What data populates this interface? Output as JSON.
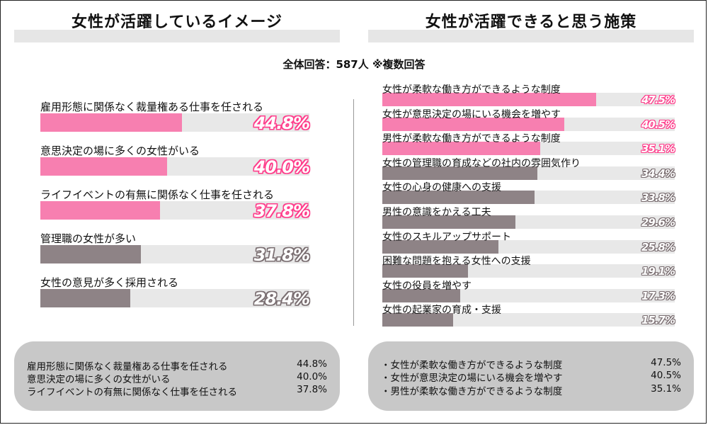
{
  "header": {
    "left_title": "女性が活躍しているイメージ",
    "right_title": "女性が活躍できると思う施策",
    "subtitle": "全体回答：587人 ※複数回答"
  },
  "colors": {
    "pink": "#f77fb0",
    "gray": "#8e8386",
    "track": "#e8e8e8",
    "pink_outline": "#ff3d8b",
    "gray_outline": "#7a6e71",
    "summary_bg": "#c8c8c8"
  },
  "chart_data": [
    {
      "type": "bar",
      "orientation": "horizontal",
      "title": "女性が活躍しているイメージ",
      "categories": [
        "雇用形態に関係なく裁量権ある仕事を任される",
        "意思決定の場に多くの女性がいる",
        "ライフイベントの有無に関係なく仕事を任される",
        "管理職の女性が多い",
        "女性の意見が多く採用される"
      ],
      "values": [
        44.8,
        40.0,
        37.8,
        31.8,
        28.4
      ],
      "value_labels": [
        "44.8%",
        "40.0%",
        "37.8%",
        "31.8%",
        "28.4%"
      ],
      "highlight_count": 3,
      "xlim": [
        0,
        100
      ],
      "grid": false
    },
    {
      "type": "bar",
      "orientation": "horizontal",
      "title": "女性が活躍できると思う施策",
      "categories": [
        "女性が柔軟な働き方ができるような制度",
        "女性が意思決定の場にいる機会を増やす",
        "男性が柔軟な働き方ができるような制度",
        "女性の管理職の育成などの社内の雰囲気作り",
        "女性の心身の健康への支援",
        "男性の意識をかえる工夫",
        "女性のスキルアップサポート",
        "困難な問題を抱える女性への支援",
        "女性の役員を増やす",
        "女性の起業家の育成・支援"
      ],
      "values": [
        47.5,
        40.5,
        35.1,
        34.4,
        33.8,
        29.6,
        25.8,
        19.1,
        17.3,
        15.7
      ],
      "value_labels": [
        "47.5%",
        "40.5%",
        "35.1%",
        "34.4%",
        "33.8%",
        "29.6%",
        "25.8%",
        "19.1%",
        "17.3%",
        "15.7%"
      ],
      "highlight_count": 3,
      "xlim": [
        0,
        100
      ],
      "grid": false
    }
  ],
  "summary_left": [
    {
      "label": "雇用形態に関係なく裁量権ある仕事を任される",
      "pct": "44.8%"
    },
    {
      "label": "意思決定の場に多くの女性がいる",
      "pct": "40.0%"
    },
    {
      "label": "ライフイベントの有無に関係なく仕事を任される",
      "pct": "37.8%"
    }
  ],
  "summary_right": [
    {
      "label": "・女性が柔軟な働き方ができるような制度",
      "pct": "47.5%"
    },
    {
      "label": "・女性が意思決定の場にいる機会を増やす",
      "pct": "40.5%"
    },
    {
      "label": "・男性が柔軟な働き方ができるような制度",
      "pct": "35.1%"
    }
  ]
}
